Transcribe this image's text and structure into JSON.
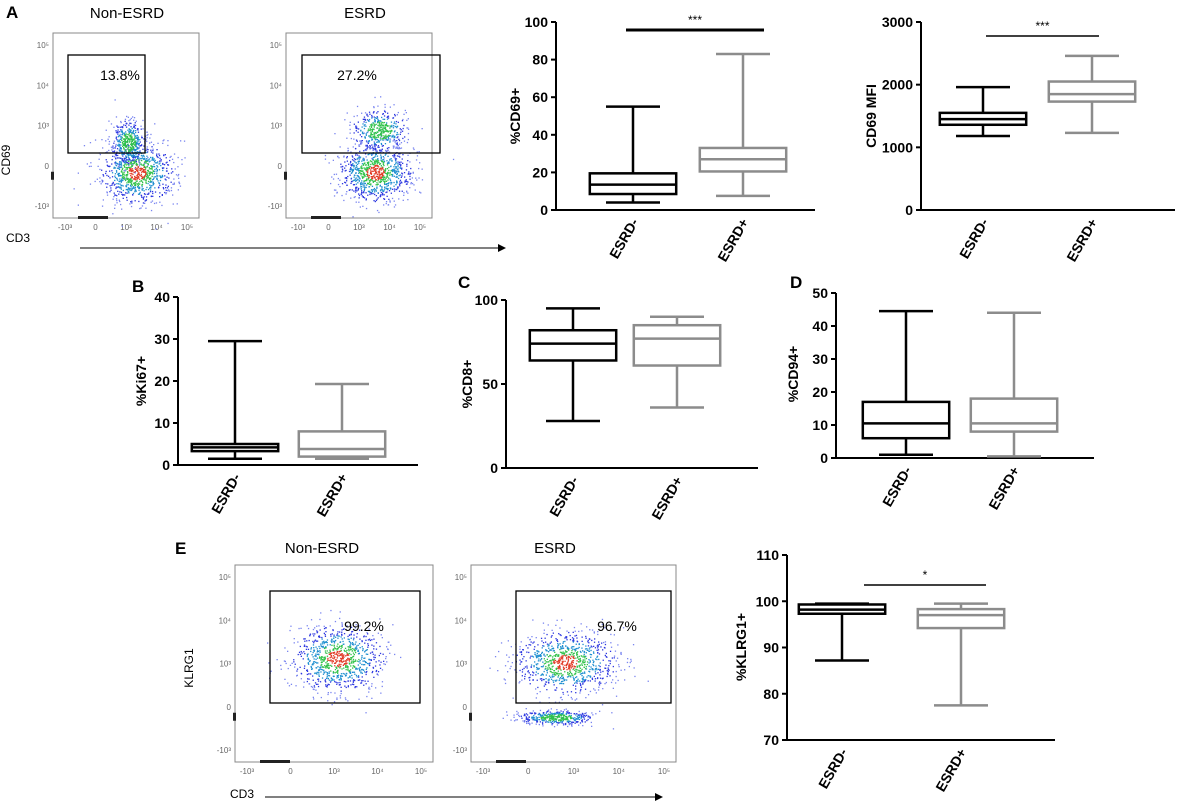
{
  "colors": {
    "esrd_minus": "#000000",
    "esrd_plus": "#8c8c8c",
    "axis": "#000000",
    "flow_axis": "#666666",
    "gate": "#000000"
  },
  "flow_panels": [
    {
      "panel_id": "A",
      "plots": [
        {
          "title": "Non-ESRD",
          "gate_pct": "13.8%",
          "ylabel": "CD69",
          "xlabel": "CD3",
          "ticks": [
            "10⁵",
            "10⁴",
            "10³",
            "0",
            "-10³"
          ],
          "xticks": [
            "-10³",
            "0",
            "10³",
            "10⁴",
            "10⁵"
          ]
        },
        {
          "title": "ESRD",
          "gate_pct": "27.2%",
          "ylabel": "",
          "xlabel": "",
          "ticks": [
            "10⁵",
            "10⁴",
            "10³",
            "0",
            "-10³"
          ],
          "xticks": [
            "-10³",
            "0",
            "10³",
            "10⁴",
            "10⁵"
          ]
        }
      ]
    },
    {
      "panel_id": "E",
      "plots": [
        {
          "title": "Non-ESRD",
          "gate_pct": "99.2%",
          "ylabel": "KLRG1",
          "xlabel": "CD3",
          "ticks": [
            "10⁵",
            "10⁴",
            "10³",
            "0",
            "-10³"
          ],
          "xticks": [
            "-10³",
            "0",
            "10³",
            "10⁴",
            "10⁵"
          ]
        },
        {
          "title": "ESRD",
          "gate_pct": "96.7%",
          "ylabel": "",
          "xlabel": "",
          "ticks": [
            "10⁵",
            "10⁴",
            "10³",
            "0",
            "-10³"
          ],
          "xticks": [
            "-10³",
            "0",
            "10³",
            "10⁴",
            "10⁵"
          ]
        }
      ]
    }
  ],
  "chart_data": [
    {
      "type": "box",
      "panel": "A",
      "ylabel": "%CD69+",
      "ylim": [
        0,
        100
      ],
      "yticks": [
        0,
        20,
        40,
        60,
        80,
        100
      ],
      "categories": [
        "ESRD-",
        "ESRD+"
      ],
      "series": [
        {
          "name": "ESRD-",
          "min": 4,
          "q1": 8.5,
          "median": 13.5,
          "q3": 19.5,
          "max": 55
        },
        {
          "name": "ESRD+",
          "min": 7.5,
          "q1": 20.5,
          "median": 27,
          "q3": 33,
          "max": 83
        }
      ],
      "significance": "***"
    },
    {
      "type": "box",
      "panel": "A",
      "ylabel": "CD69 MFI",
      "ylim": [
        0,
        3000
      ],
      "yticks": [
        0,
        1000,
        2000,
        3000
      ],
      "categories": [
        "ESRD-",
        "ESRD+"
      ],
      "series": [
        {
          "name": "ESRD-",
          "min": 1180,
          "q1": 1360,
          "median": 1450,
          "q3": 1550,
          "max": 1960
        },
        {
          "name": "ESRD+",
          "min": 1230,
          "q1": 1730,
          "median": 1850,
          "q3": 2050,
          "max": 2460
        }
      ],
      "significance": "***"
    },
    {
      "type": "box",
      "panel": "B",
      "ylabel": "%Ki67+",
      "ylim": [
        0,
        40
      ],
      "yticks": [
        0,
        10,
        20,
        30,
        40
      ],
      "categories": [
        "ESRD-",
        "ESRD+"
      ],
      "series": [
        {
          "name": "ESRD-",
          "min": 1.5,
          "q1": 3.3,
          "median": 4.2,
          "q3": 5,
          "max": 29.5
        },
        {
          "name": "ESRD+",
          "min": 1.5,
          "q1": 2,
          "median": 3.8,
          "q3": 8,
          "max": 19.3
        }
      ],
      "significance": ""
    },
    {
      "type": "box",
      "panel": "C",
      "ylabel": "%CD8+",
      "ylim": [
        0,
        100
      ],
      "yticks": [
        0,
        50,
        100
      ],
      "categories": [
        "ESRD-",
        "ESRD+"
      ],
      "series": [
        {
          "name": "ESRD-",
          "min": 28,
          "q1": 64,
          "median": 74,
          "q3": 82,
          "max": 95
        },
        {
          "name": "ESRD+",
          "min": 36,
          "q1": 61,
          "median": 77,
          "q3": 85,
          "max": 90
        }
      ],
      "significance": ""
    },
    {
      "type": "box",
      "panel": "D",
      "ylabel": "%CD94+",
      "ylim": [
        0,
        50
      ],
      "yticks": [
        0,
        10,
        20,
        30,
        40,
        50
      ],
      "categories": [
        "ESRD-",
        "ESRD+"
      ],
      "series": [
        {
          "name": "ESRD-",
          "min": 1,
          "q1": 6,
          "median": 10.5,
          "q3": 17,
          "max": 44.5
        },
        {
          "name": "ESRD+",
          "min": 0.5,
          "q1": 8,
          "median": 10.5,
          "q3": 18,
          "max": 44
        }
      ],
      "significance": ""
    },
    {
      "type": "box",
      "panel": "E",
      "ylabel": "%KLRG1+",
      "ylim": [
        70,
        110
      ],
      "yticks": [
        70,
        80,
        90,
        100,
        110
      ],
      "categories": [
        "ESRD-",
        "ESRD+"
      ],
      "series": [
        {
          "name": "ESRD-",
          "min": 87.2,
          "q1": 97.3,
          "median": 98.2,
          "q3": 99.3,
          "max": 99.5
        },
        {
          "name": "ESRD+",
          "min": 77.5,
          "q1": 94.2,
          "median": 97,
          "q3": 98.3,
          "max": 99.5
        }
      ],
      "significance": "*"
    }
  ]
}
